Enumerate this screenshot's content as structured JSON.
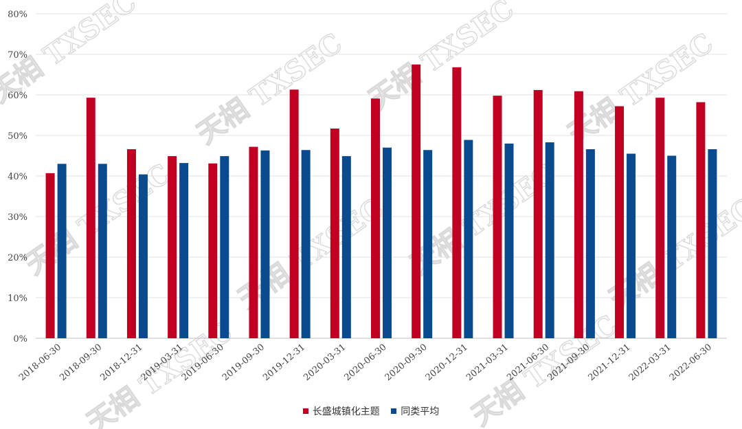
{
  "chart_data": {
    "type": "bar",
    "categories": [
      "2018-06-30",
      "2018-09-30",
      "2018-12-31",
      "2019-03-31",
      "2019-06-30",
      "2019-09-30",
      "2019-12-31",
      "2020-03-31",
      "2020-06-30",
      "2020-09-30",
      "2020-12-31",
      "2021-03-31",
      "2021-06-30",
      "2021-09-30",
      "2021-12-31",
      "2022-03-31",
      "2022-06-30"
    ],
    "series": [
      {
        "name": "长盛城镇化主题",
        "color": "#c00023",
        "values": [
          40.7,
          59.3,
          46.6,
          44.9,
          43.1,
          47.2,
          61.3,
          51.7,
          59.1,
          67.5,
          66.8,
          59.8,
          61.2,
          60.9,
          57.2,
          59.3,
          58.2
        ]
      },
      {
        "name": "同类平均",
        "color": "#0a4b8f",
        "values": [
          43.0,
          43.0,
          40.4,
          43.2,
          44.9,
          46.3,
          46.4,
          44.9,
          47.0,
          46.4,
          48.9,
          48.0,
          48.3,
          46.6,
          45.5,
          45.0,
          46.6
        ]
      }
    ],
    "ylim": [
      0,
      80
    ],
    "yticks": [
      0,
      10,
      20,
      30,
      40,
      50,
      60,
      70,
      80
    ],
    "ytick_labels": [
      "0%",
      "10%",
      "20%",
      "30%",
      "40%",
      "50%",
      "60%",
      "70%",
      "80%"
    ],
    "grid": true,
    "legend_position": "bottom",
    "title": "",
    "xlabel": "",
    "ylabel": ""
  },
  "watermark": {
    "text": "天相 TXSEC"
  }
}
